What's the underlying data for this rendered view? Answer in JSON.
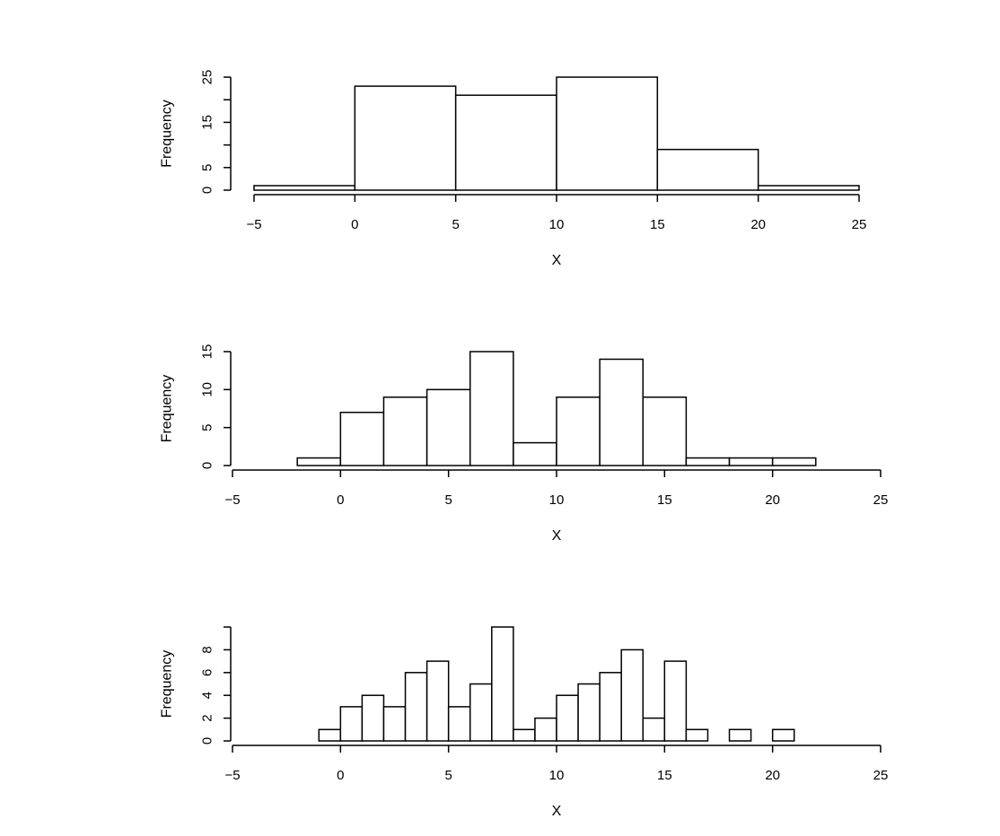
{
  "chart_data": [
    {
      "type": "bar",
      "xlabel": "X",
      "ylabel": "Frequency",
      "bin_edges": [
        -5,
        0,
        5,
        10,
        15,
        20,
        25
      ],
      "values": [
        1,
        23,
        21,
        25,
        9,
        1
      ],
      "xlim": [
        -5,
        25
      ],
      "ylim": [
        0,
        25
      ],
      "x_ticks": [
        -5,
        0,
        5,
        10,
        15,
        20,
        25
      ],
      "x_tick_labels": [
        "−5",
        "0",
        "5",
        "10",
        "15",
        "20",
        "25"
      ],
      "y_ticks": [
        0,
        5,
        10,
        15,
        20,
        25
      ],
      "y_tick_labels": [
        "0",
        "5",
        "",
        "15",
        "",
        "25"
      ],
      "grid": false
    },
    {
      "type": "bar",
      "xlabel": "X",
      "ylabel": "Frequency",
      "bin_edges": [
        -4,
        -2,
        0,
        2,
        4,
        6,
        8,
        10,
        12,
        14,
        16,
        18,
        20,
        22,
        24
      ],
      "values": [
        0,
        1,
        7,
        9,
        10,
        15,
        3,
        9,
        14,
        9,
        1,
        1,
        1,
        0
      ],
      "xlim": [
        -5,
        25
      ],
      "ylim": [
        0,
        15
      ],
      "x_ticks": [
        -5,
        0,
        5,
        10,
        15,
        20,
        25
      ],
      "x_tick_labels": [
        "−5",
        "0",
        "5",
        "10",
        "15",
        "20",
        "25"
      ],
      "y_ticks": [
        0,
        5,
        10,
        15
      ],
      "y_tick_labels": [
        "0",
        "5",
        "10",
        "15"
      ],
      "grid": false
    },
    {
      "type": "bar",
      "xlabel": "X",
      "ylabel": "Frequency",
      "bin_edges": [
        -4,
        -3,
        -2,
        -1,
        0,
        1,
        2,
        3,
        4,
        5,
        6,
        7,
        8,
        9,
        10,
        11,
        12,
        13,
        14,
        15,
        16,
        17,
        18,
        19,
        20,
        21,
        22,
        23,
        24
      ],
      "values": [
        0,
        0,
        0,
        1,
        3,
        4,
        3,
        6,
        7,
        3,
        5,
        10,
        1,
        2,
        4,
        5,
        6,
        8,
        2,
        7,
        1,
        0,
        1,
        0,
        1,
        0,
        0,
        0
      ],
      "xlim": [
        -5,
        25
      ],
      "ylim": [
        0,
        10
      ],
      "x_ticks": [
        -5,
        0,
        5,
        10,
        15,
        20,
        25
      ],
      "x_tick_labels": [
        "−5",
        "0",
        "5",
        "10",
        "15",
        "20",
        "25"
      ],
      "y_ticks": [
        0,
        2,
        4,
        6,
        8,
        10
      ],
      "y_tick_labels": [
        "0",
        "2",
        "4",
        "6",
        "8",
        ""
      ],
      "grid": false
    }
  ]
}
